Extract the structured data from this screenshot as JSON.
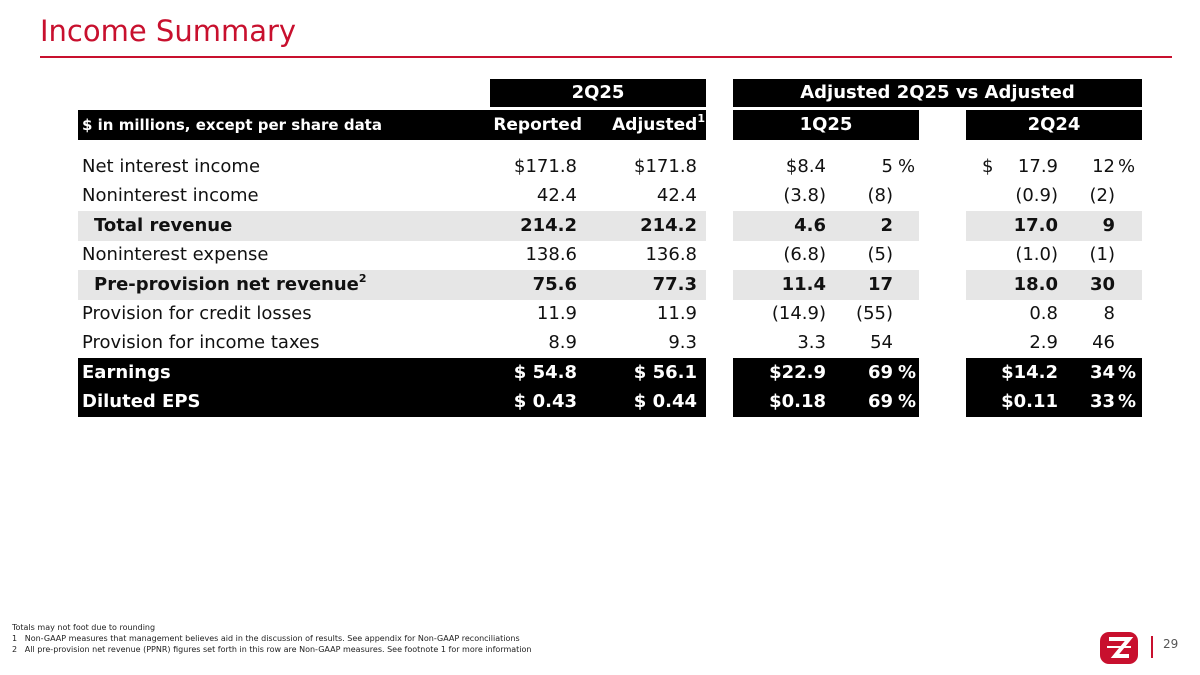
{
  "slide": {
    "title": "Income Summary",
    "page_number": "29"
  },
  "table": {
    "group_headers": {
      "period": "2Q25",
      "comparison": "Adjusted 2Q25 vs Adjusted"
    },
    "col_headers": {
      "units": "$ in millions, except per share data",
      "reported": "Reported",
      "adjusted": "Adjusted",
      "adjusted_sup": "1",
      "q1": "1Q25",
      "q2": "2Q24"
    },
    "rows": [
      {
        "label": "Net interest income",
        "reported": "$171.8",
        "adjusted": "$171.8",
        "q1_val": "$8.4",
        "q1_pct": "5",
        "q1_pct_sign": "%",
        "q2_prefix": "$",
        "q2_val": "17.9",
        "q2_pct": "12",
        "q2_pct_sign": "%"
      },
      {
        "label": "Noninterest income",
        "reported": "42.4",
        "adjusted": "42.4",
        "q1_val": "(3.8)",
        "q1_pct": "(8)",
        "q1_pct_sign": "",
        "q2_prefix": "",
        "q2_val": "(0.9)",
        "q2_pct": "(2)",
        "q2_pct_sign": ""
      },
      {
        "label": "Total revenue",
        "reported": "214.2",
        "adjusted": "214.2",
        "q1_val": "4.6",
        "q1_pct": "2",
        "q1_pct_sign": "",
        "q2_prefix": "",
        "q2_val": "17.0",
        "q2_pct": "9",
        "q2_pct_sign": ""
      },
      {
        "label": "Noninterest expense",
        "reported": "138.6",
        "adjusted": "136.8",
        "q1_val": "(6.8)",
        "q1_pct": "(5)",
        "q1_pct_sign": "",
        "q2_prefix": "",
        "q2_val": "(1.0)",
        "q2_pct": "(1)",
        "q2_pct_sign": ""
      },
      {
        "label": "Pre-provision net revenue",
        "label_sup": "2",
        "reported": "75.6",
        "adjusted": "77.3",
        "q1_val": "11.4",
        "q1_pct": "17",
        "q1_pct_sign": "",
        "q2_prefix": "",
        "q2_val": "18.0",
        "q2_pct": "30",
        "q2_pct_sign": ""
      },
      {
        "label": "Provision for credit losses",
        "reported": "11.9",
        "adjusted": "11.9",
        "q1_val": "(14.9)",
        "q1_pct": "(55)",
        "q1_pct_sign": "",
        "q2_prefix": "",
        "q2_val": "0.8",
        "q2_pct": "8",
        "q2_pct_sign": ""
      },
      {
        "label": "Provision for income taxes",
        "reported": "8.9",
        "adjusted": "9.3",
        "q1_val": "3.3",
        "q1_pct": "54",
        "q1_pct_sign": "",
        "q2_prefix": "",
        "q2_val": "2.9",
        "q2_pct": "46",
        "q2_pct_sign": ""
      },
      {
        "label": "Earnings",
        "reported": "$ 54.8",
        "adjusted": "$ 56.1",
        "q1_val": "$22.9",
        "q1_pct": "69",
        "q1_pct_sign": "%",
        "q2_prefix": "",
        "q2_val": "$14.2",
        "q2_pct": "34",
        "q2_pct_sign": "%"
      },
      {
        "label": "Diluted EPS",
        "reported": "$ 0.43",
        "adjusted": "$ 0.44",
        "q1_val": "$0.18",
        "q1_pct": "69",
        "q1_pct_sign": "%",
        "q2_prefix": "",
        "q2_val": "$0.11",
        "q2_pct": "33",
        "q2_pct_sign": "%"
      }
    ]
  },
  "footnotes": {
    "line0": "Totals may not foot due to rounding",
    "line1_num": "1",
    "line1": "Non-GAAP measures that management believes aid in the discussion of results. See appendix for Non-GAAP reconciliations",
    "line2_num": "2",
    "line2": "All pre-provision net revenue (PPNR) figures set forth in this row are Non-GAAP measures. See footnote 1 for more information"
  },
  "logo": {
    "icon": "zions-logo-icon",
    "color": "#c8102e"
  }
}
